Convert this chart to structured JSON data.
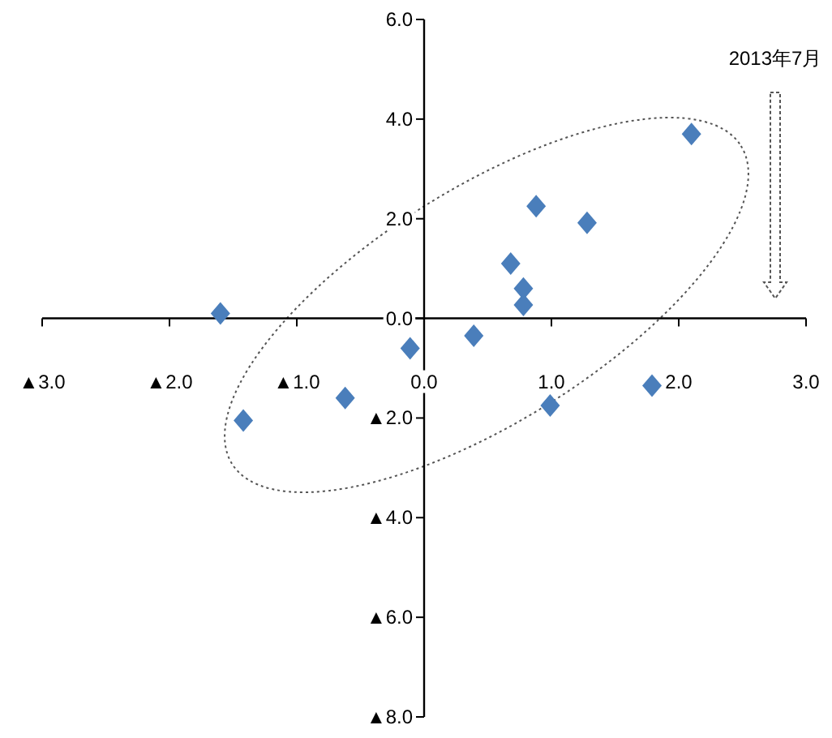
{
  "chart_data": {
    "type": "scatter",
    "marker": "diamond",
    "annotations": [
      "2013年7月"
    ],
    "x": [
      -1.6,
      -1.42,
      -0.62,
      -0.11,
      0.39,
      0.68,
      0.78,
      0.78,
      0.88,
      1.28,
      0.99,
      1.79,
      2.1
    ],
    "series": [
      {
        "color": "#4a7ebb",
        "values": [
          0.1,
          -2.05,
          -1.6,
          -0.6,
          -0.35,
          1.1,
          0.6,
          0.27,
          2.25,
          1.92,
          -1.75,
          -1.35,
          3.7
        ]
      }
    ],
    "xlim": [
      -3,
      3
    ],
    "ylim": [
      -8,
      6
    ],
    "xticks": [
      {
        "value": -3,
        "label": "▲3.0"
      },
      {
        "value": -2,
        "label": "▲2.0"
      },
      {
        "value": -1,
        "label": "▲1.0"
      },
      {
        "value": 0,
        "label": "0.0"
      },
      {
        "value": 1,
        "label": "1.0"
      },
      {
        "value": 2,
        "label": "2.0"
      },
      {
        "value": 3,
        "label": "3.0"
      }
    ],
    "yticks": [
      {
        "value": -8,
        "label": "▲8.0"
      },
      {
        "value": -6,
        "label": "▲6.0"
      },
      {
        "value": -4,
        "label": "▲4.0"
      },
      {
        "value": -2,
        "label": "▲2.0"
      },
      {
        "value": 0,
        "label": "0.0"
      },
      {
        "value": 2,
        "label": "2.0"
      },
      {
        "value": 4,
        "label": "4.0"
      },
      {
        "value": 6,
        "label": "6.0"
      }
    ]
  }
}
